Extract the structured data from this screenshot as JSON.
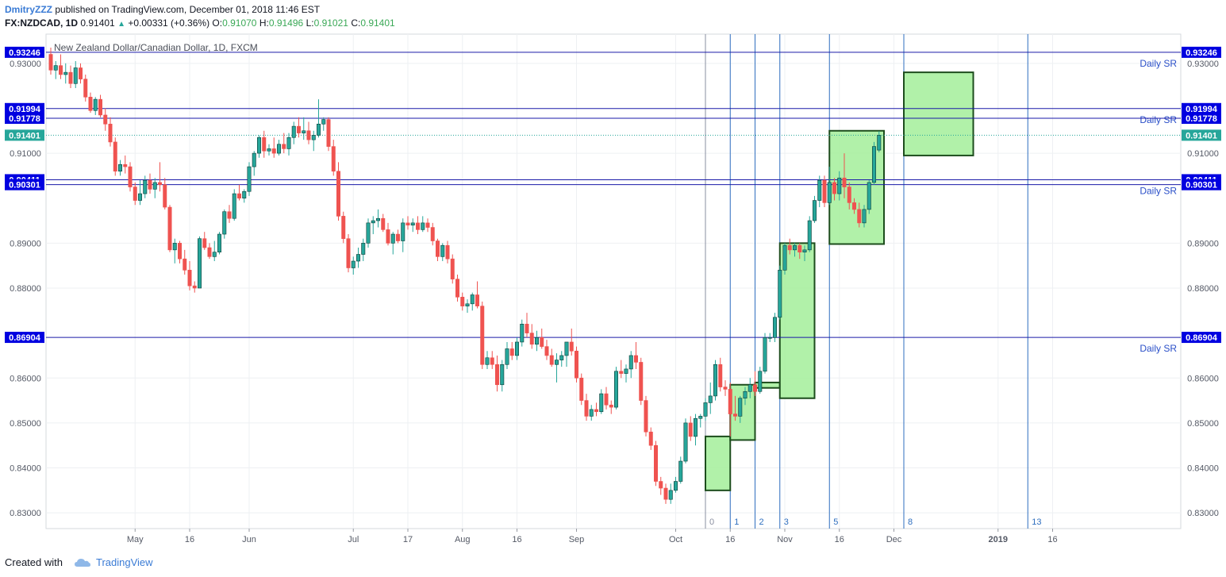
{
  "header": {
    "author": "DmitryZZZ",
    "published": "published on TradingView.com, December 01, 2018 11:46 EST",
    "symbol": "FX:NZDCAD, 1D",
    "last": "0.91401",
    "change": "+0.00331 (+0.36%)",
    "o_label": "O:",
    "o_val": "0.91070",
    "h_label": "H:",
    "h_val": "0.91496",
    "l_label": "L:",
    "l_val": "0.91021",
    "c_label": "C:",
    "c_val": "0.91401"
  },
  "footer": {
    "created_with": "Created with",
    "brand": "TradingView"
  },
  "colors": {
    "up": "#26a69a",
    "down": "#ef5350",
    "sr_line": "#1a1aa8",
    "box_fill": "#a8f0a0",
    "box_stroke": "#1d4d1d",
    "fib_line": "#2f6fbf",
    "price_tag": "#0000e0",
    "last_tag": "#26a69a"
  },
  "chart_data": {
    "type": "candlestick",
    "title": "New Zealand Dollar/Canadian Dollar, 1D, FXCM",
    "ylim": [
      0.8265,
      0.9365
    ],
    "y_ticks": [
      "0.93000",
      "0.91000",
      "0.89000",
      "0.88000",
      "0.86000",
      "0.85000",
      "0.84000",
      "0.83000"
    ],
    "x_ticks": [
      {
        "label": "May",
        "i": 17
      },
      {
        "label": "16",
        "i": 28
      },
      {
        "label": "Jun",
        "i": 40
      },
      {
        "label": "Jul",
        "i": 61
      },
      {
        "label": "17",
        "i": 72
      },
      {
        "label": "Aug",
        "i": 83
      },
      {
        "label": "16",
        "i": 94
      },
      {
        "label": "Sep",
        "i": 106
      },
      {
        "label": "Oct",
        "i": 126
      },
      {
        "label": "16",
        "i": 137
      },
      {
        "label": "Nov",
        "i": 148
      },
      {
        "label": "16",
        "i": 159
      },
      {
        "label": "Dec",
        "i": 170
      },
      {
        "label": "2019",
        "i": 191
      },
      {
        "label": "16",
        "i": 202
      }
    ],
    "sr_levels": [
      {
        "value": 0.93246,
        "label": "0.93246",
        "tag": "Daily SR"
      },
      {
        "value": 0.91994,
        "label": "0.91994",
        "tag": "Daily SR"
      },
      {
        "value": 0.91778,
        "label": "0.91778",
        "tag": ""
      },
      {
        "value": 0.90411,
        "label": "0.90411",
        "tag": "Daily SR"
      },
      {
        "value": 0.90301,
        "label": "0.90301",
        "tag": ""
      },
      {
        "value": 0.86904,
        "label": "0.86904",
        "tag": "Daily SR"
      }
    ],
    "last_price": {
      "value": 0.91401,
      "label": "0.91401"
    },
    "fib_time_lines": [
      {
        "i": 132,
        "label": "0"
      },
      {
        "i": 137,
        "label": "1"
      },
      {
        "i": 142,
        "label": "2"
      },
      {
        "i": 147,
        "label": "3"
      },
      {
        "i": 157,
        "label": "5"
      },
      {
        "i": 172,
        "label": "8"
      },
      {
        "i": 197,
        "label": "13"
      }
    ],
    "boxes": [
      {
        "i0": 132,
        "i1": 137,
        "top": 0.847,
        "bottom": 0.835
      },
      {
        "i0": 137,
        "i1": 142,
        "top": 0.8585,
        "bottom": 0.8462
      },
      {
        "i0": 142,
        "i1": 147,
        "top": 0.859,
        "bottom": 0.8578
      },
      {
        "i0": 147,
        "i1": 154,
        "top": 0.89,
        "bottom": 0.8555
      },
      {
        "i0": 157,
        "i1": 168,
        "top": 0.915,
        "bottom": 0.8898
      },
      {
        "i0": 172,
        "i1": 186,
        "top": 0.928,
        "bottom": 0.9095
      }
    ],
    "candles": [
      [
        0.932,
        0.9335,
        0.9275,
        0.9285
      ],
      [
        0.9285,
        0.9305,
        0.9265,
        0.9295
      ],
      [
        0.9295,
        0.932,
        0.9265,
        0.9275
      ],
      [
        0.9275,
        0.93,
        0.9255,
        0.928
      ],
      [
        0.928,
        0.9295,
        0.9245,
        0.9255
      ],
      [
        0.9255,
        0.9305,
        0.9245,
        0.929
      ],
      [
        0.929,
        0.93,
        0.9255,
        0.9265
      ],
      [
        0.9265,
        0.9275,
        0.9215,
        0.9225
      ],
      [
        0.9225,
        0.9235,
        0.919,
        0.9195
      ],
      [
        0.9195,
        0.9225,
        0.9185,
        0.922
      ],
      [
        0.922,
        0.923,
        0.918,
        0.9185
      ],
      [
        0.9185,
        0.92,
        0.915,
        0.9165
      ],
      [
        0.9165,
        0.918,
        0.9115,
        0.9125
      ],
      [
        0.9125,
        0.9135,
        0.905,
        0.906
      ],
      [
        0.906,
        0.9085,
        0.905,
        0.9075
      ],
      [
        0.9075,
        0.9095,
        0.9055,
        0.907
      ],
      [
        0.907,
        0.908,
        0.9015,
        0.9025
      ],
      [
        0.9025,
        0.9035,
        0.8985,
        0.8995
      ],
      [
        0.8995,
        0.904,
        0.8985,
        0.901
      ],
      [
        0.901,
        0.905,
        0.9,
        0.904
      ],
      [
        0.904,
        0.9055,
        0.901,
        0.902
      ],
      [
        0.902,
        0.9045,
        0.9,
        0.9035
      ],
      [
        0.9035,
        0.908,
        0.9015,
        0.903
      ],
      [
        0.903,
        0.9045,
        0.8975,
        0.898
      ],
      [
        0.898,
        0.8985,
        0.888,
        0.8885
      ],
      [
        0.8885,
        0.891,
        0.8855,
        0.89
      ],
      [
        0.89,
        0.8905,
        0.8855,
        0.8865
      ],
      [
        0.8865,
        0.8885,
        0.883,
        0.884
      ],
      [
        0.884,
        0.886,
        0.8795,
        0.8805
      ],
      [
        0.8805,
        0.8815,
        0.879,
        0.88
      ],
      [
        0.88,
        0.8915,
        0.88,
        0.891
      ],
      [
        0.891,
        0.8925,
        0.8885,
        0.889
      ],
      [
        0.889,
        0.89,
        0.8865,
        0.887
      ],
      [
        0.887,
        0.8905,
        0.886,
        0.888
      ],
      [
        0.888,
        0.8925,
        0.8875,
        0.892
      ],
      [
        0.892,
        0.8975,
        0.891,
        0.897
      ],
      [
        0.897,
        0.8985,
        0.8945,
        0.8955
      ],
      [
        0.8955,
        0.902,
        0.895,
        0.901
      ],
      [
        0.901,
        0.903,
        0.8995,
        0.9
      ],
      [
        0.9,
        0.902,
        0.899,
        0.9015
      ],
      [
        0.9015,
        0.908,
        0.9005,
        0.907
      ],
      [
        0.907,
        0.9105,
        0.905,
        0.91
      ],
      [
        0.91,
        0.914,
        0.909,
        0.9135
      ],
      [
        0.9135,
        0.915,
        0.909,
        0.9105
      ],
      [
        0.9105,
        0.912,
        0.9095,
        0.911
      ],
      [
        0.911,
        0.9135,
        0.909,
        0.91
      ],
      [
        0.91,
        0.913,
        0.9095,
        0.912
      ],
      [
        0.912,
        0.9145,
        0.91,
        0.911
      ],
      [
        0.911,
        0.9145,
        0.9095,
        0.9135
      ],
      [
        0.9135,
        0.917,
        0.912,
        0.916
      ],
      [
        0.916,
        0.918,
        0.9135,
        0.9145
      ],
      [
        0.9145,
        0.918,
        0.913,
        0.915
      ],
      [
        0.915,
        0.917,
        0.912,
        0.913
      ],
      [
        0.913,
        0.915,
        0.9105,
        0.914
      ],
      [
        0.914,
        0.922,
        0.9135,
        0.9165
      ],
      [
        0.9165,
        0.918,
        0.915,
        0.9175
      ],
      [
        0.9175,
        0.918,
        0.9105,
        0.9115
      ],
      [
        0.9115,
        0.913,
        0.905,
        0.906
      ],
      [
        0.906,
        0.908,
        0.895,
        0.896
      ],
      [
        0.896,
        0.897,
        0.89,
        0.891
      ],
      [
        0.891,
        0.892,
        0.8835,
        0.8845
      ],
      [
        0.8845,
        0.887,
        0.883,
        0.886
      ],
      [
        0.886,
        0.889,
        0.8845,
        0.8875
      ],
      [
        0.8875,
        0.891,
        0.886,
        0.89
      ],
      [
        0.89,
        0.8955,
        0.889,
        0.8945
      ],
      [
        0.8945,
        0.896,
        0.892,
        0.895
      ],
      [
        0.895,
        0.8975,
        0.8935,
        0.8955
      ],
      [
        0.8955,
        0.8965,
        0.8925,
        0.893
      ],
      [
        0.893,
        0.8945,
        0.8895,
        0.89
      ],
      [
        0.89,
        0.8925,
        0.8875,
        0.892
      ],
      [
        0.892,
        0.893,
        0.89,
        0.8905
      ],
      [
        0.8905,
        0.8955,
        0.888,
        0.8945
      ],
      [
        0.8945,
        0.896,
        0.893,
        0.894
      ],
      [
        0.894,
        0.8955,
        0.8925,
        0.8945
      ],
      [
        0.8945,
        0.896,
        0.892,
        0.893
      ],
      [
        0.893,
        0.896,
        0.8925,
        0.8945
      ],
      [
        0.8945,
        0.8955,
        0.8925,
        0.8935
      ],
      [
        0.8935,
        0.8945,
        0.8895,
        0.8905
      ],
      [
        0.8905,
        0.891,
        0.886,
        0.887
      ],
      [
        0.887,
        0.89,
        0.886,
        0.8895
      ],
      [
        0.8895,
        0.8905,
        0.8855,
        0.8865
      ],
      [
        0.8865,
        0.8875,
        0.881,
        0.882
      ],
      [
        0.882,
        0.883,
        0.877,
        0.878
      ],
      [
        0.878,
        0.879,
        0.875,
        0.876
      ],
      [
        0.876,
        0.8775,
        0.8745,
        0.8765
      ],
      [
        0.8765,
        0.879,
        0.875,
        0.8785
      ],
      [
        0.8785,
        0.8815,
        0.8755,
        0.876
      ],
      [
        0.876,
        0.877,
        0.862,
        0.863
      ],
      [
        0.863,
        0.866,
        0.862,
        0.8645
      ],
      [
        0.8645,
        0.866,
        0.862,
        0.863
      ],
      [
        0.863,
        0.865,
        0.857,
        0.8585
      ],
      [
        0.8585,
        0.864,
        0.857,
        0.863
      ],
      [
        0.863,
        0.868,
        0.862,
        0.8665
      ],
      [
        0.8665,
        0.868,
        0.864,
        0.865
      ],
      [
        0.865,
        0.869,
        0.864,
        0.868
      ],
      [
        0.868,
        0.873,
        0.867,
        0.872
      ],
      [
        0.872,
        0.8745,
        0.869,
        0.87
      ],
      [
        0.87,
        0.872,
        0.8665,
        0.8675
      ],
      [
        0.8675,
        0.8705,
        0.866,
        0.869
      ],
      [
        0.869,
        0.871,
        0.8665,
        0.867
      ],
      [
        0.867,
        0.8685,
        0.864,
        0.865
      ],
      [
        0.865,
        0.8665,
        0.8625,
        0.863
      ],
      [
        0.863,
        0.8655,
        0.859,
        0.864
      ],
      [
        0.864,
        0.866,
        0.8625,
        0.865
      ],
      [
        0.865,
        0.868,
        0.8625,
        0.868
      ],
      [
        0.868,
        0.871,
        0.865,
        0.866
      ],
      [
        0.866,
        0.867,
        0.859,
        0.86
      ],
      [
        0.86,
        0.861,
        0.854,
        0.855
      ],
      [
        0.855,
        0.8565,
        0.8505,
        0.8515
      ],
      [
        0.8515,
        0.854,
        0.8505,
        0.853
      ],
      [
        0.853,
        0.8545,
        0.8515,
        0.8525
      ],
      [
        0.8525,
        0.8575,
        0.852,
        0.8565
      ],
      [
        0.8565,
        0.858,
        0.853,
        0.854
      ],
      [
        0.854,
        0.855,
        0.852,
        0.8535
      ],
      [
        0.8535,
        0.8625,
        0.853,
        0.8615
      ],
      [
        0.8615,
        0.864,
        0.86,
        0.861
      ],
      [
        0.861,
        0.863,
        0.859,
        0.862
      ],
      [
        0.862,
        0.866,
        0.86,
        0.865
      ],
      [
        0.865,
        0.868,
        0.862,
        0.8635
      ],
      [
        0.8635,
        0.8645,
        0.854,
        0.855
      ],
      [
        0.855,
        0.856,
        0.847,
        0.848
      ],
      [
        0.848,
        0.849,
        0.844,
        0.845
      ],
      [
        0.845,
        0.846,
        0.836,
        0.837
      ],
      [
        0.837,
        0.838,
        0.834,
        0.8355
      ],
      [
        0.8355,
        0.8365,
        0.832,
        0.833
      ],
      [
        0.833,
        0.8365,
        0.832,
        0.835
      ],
      [
        0.835,
        0.838,
        0.8345,
        0.837
      ],
      [
        0.837,
        0.8425,
        0.8365,
        0.8415
      ],
      [
        0.8415,
        0.851,
        0.841,
        0.85
      ],
      [
        0.85,
        0.8515,
        0.846,
        0.847
      ],
      [
        0.847,
        0.852,
        0.845,
        0.851
      ],
      [
        0.851,
        0.852,
        0.849,
        0.8515
      ],
      [
        0.8515,
        0.8555,
        0.8505,
        0.8545
      ],
      [
        0.8545,
        0.859,
        0.852,
        0.856
      ],
      [
        0.856,
        0.864,
        0.855,
        0.863
      ],
      [
        0.863,
        0.8645,
        0.857,
        0.858
      ],
      [
        0.858,
        0.8595,
        0.856,
        0.8575
      ],
      [
        0.8575,
        0.859,
        0.847,
        0.852
      ],
      [
        0.852,
        0.856,
        0.8505,
        0.8515
      ],
      [
        0.8515,
        0.856,
        0.85,
        0.8555
      ],
      [
        0.8555,
        0.858,
        0.854,
        0.857
      ],
      [
        0.857,
        0.86,
        0.8555,
        0.8585
      ],
      [
        0.8585,
        0.8615,
        0.856,
        0.857
      ],
      [
        0.857,
        0.8625,
        0.8565,
        0.8615
      ],
      [
        0.8615,
        0.87,
        0.861,
        0.869
      ],
      [
        0.869,
        0.87,
        0.868,
        0.869
      ],
      [
        0.869,
        0.8745,
        0.868,
        0.8735
      ],
      [
        0.8735,
        0.885,
        0.873,
        0.884
      ],
      [
        0.884,
        0.89,
        0.883,
        0.8895
      ],
      [
        0.8895,
        0.891,
        0.8875,
        0.8885
      ],
      [
        0.8885,
        0.89,
        0.887,
        0.8895
      ],
      [
        0.8895,
        0.89,
        0.8865,
        0.888
      ],
      [
        0.888,
        0.8895,
        0.886,
        0.8885
      ],
      [
        0.8885,
        0.896,
        0.888,
        0.895
      ],
      [
        0.895,
        0.9005,
        0.8945,
        0.8995
      ],
      [
        0.8995,
        0.905,
        0.898,
        0.904
      ],
      [
        0.904,
        0.905,
        0.898,
        0.899
      ],
      [
        0.899,
        0.907,
        0.8985,
        0.9035
      ],
      [
        0.9035,
        0.9045,
        0.8995,
        0.901
      ],
      [
        0.901,
        0.906,
        0.8995,
        0.9045
      ],
      [
        0.9045,
        0.91,
        0.9,
        0.9025
      ],
      [
        0.9025,
        0.9035,
        0.8975,
        0.899
      ],
      [
        0.899,
        0.9,
        0.8965,
        0.8975
      ],
      [
        0.8975,
        0.899,
        0.8935,
        0.8945
      ],
      [
        0.8945,
        0.8985,
        0.8935,
        0.8975
      ],
      [
        0.8975,
        0.904,
        0.8965,
        0.9035
      ],
      [
        0.9035,
        0.9125,
        0.903,
        0.9115
      ],
      [
        0.9107,
        0.9149,
        0.9102,
        0.914
      ]
    ]
  }
}
